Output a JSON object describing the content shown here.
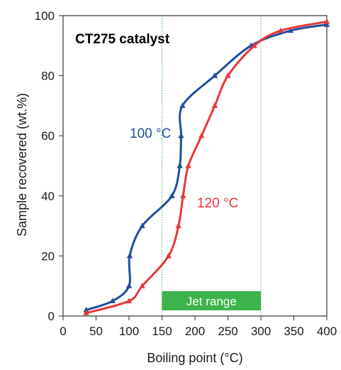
{
  "chart_data": {
    "type": "line",
    "title": "CT275 catalyst",
    "xlabel": "Boiling point (°C)",
    "ylabel": "Sample recovered (wt.%)",
    "xlim": [
      0,
      400
    ],
    "ylim": [
      0,
      100
    ],
    "xticks": [
      0,
      50,
      100,
      150,
      200,
      250,
      300,
      350,
      400
    ],
    "yticks": [
      0,
      20,
      40,
      60,
      80,
      100
    ],
    "grid": false,
    "series": [
      {
        "name": "100 °C",
        "color": "#1f4e9e",
        "marker": "triangle",
        "points": [
          [
            35,
            2
          ],
          [
            75,
            5
          ],
          [
            100,
            10
          ],
          [
            101,
            20
          ],
          [
            120,
            30
          ],
          [
            165,
            40
          ],
          [
            177,
            50
          ],
          [
            179,
            60
          ],
          [
            181,
            70
          ],
          [
            230,
            80
          ],
          [
            285,
            90
          ],
          [
            345,
            95
          ],
          [
            400,
            97
          ]
        ]
      },
      {
        "name": "120 °C",
        "color": "#e8373a",
        "marker": "triangle",
        "points": [
          [
            35,
            1
          ],
          [
            100,
            5
          ],
          [
            120,
            10
          ],
          [
            160,
            20
          ],
          [
            175,
            30
          ],
          [
            182,
            40
          ],
          [
            190,
            50
          ],
          [
            210,
            60
          ],
          [
            230,
            70
          ],
          [
            250,
            80
          ],
          [
            290,
            90
          ],
          [
            330,
            95
          ],
          [
            400,
            98
          ]
        ]
      }
    ],
    "reference_lines": [
      {
        "axis": "x",
        "value": 150,
        "color": "#3cb44b",
        "style": "dotted"
      },
      {
        "axis": "x",
        "value": 300,
        "color": "#3cb44b",
        "style": "dotted"
      }
    ],
    "range_band": {
      "label": "Jet range",
      "x_from": 150,
      "x_to": 300,
      "color": "#3cb44b"
    }
  }
}
